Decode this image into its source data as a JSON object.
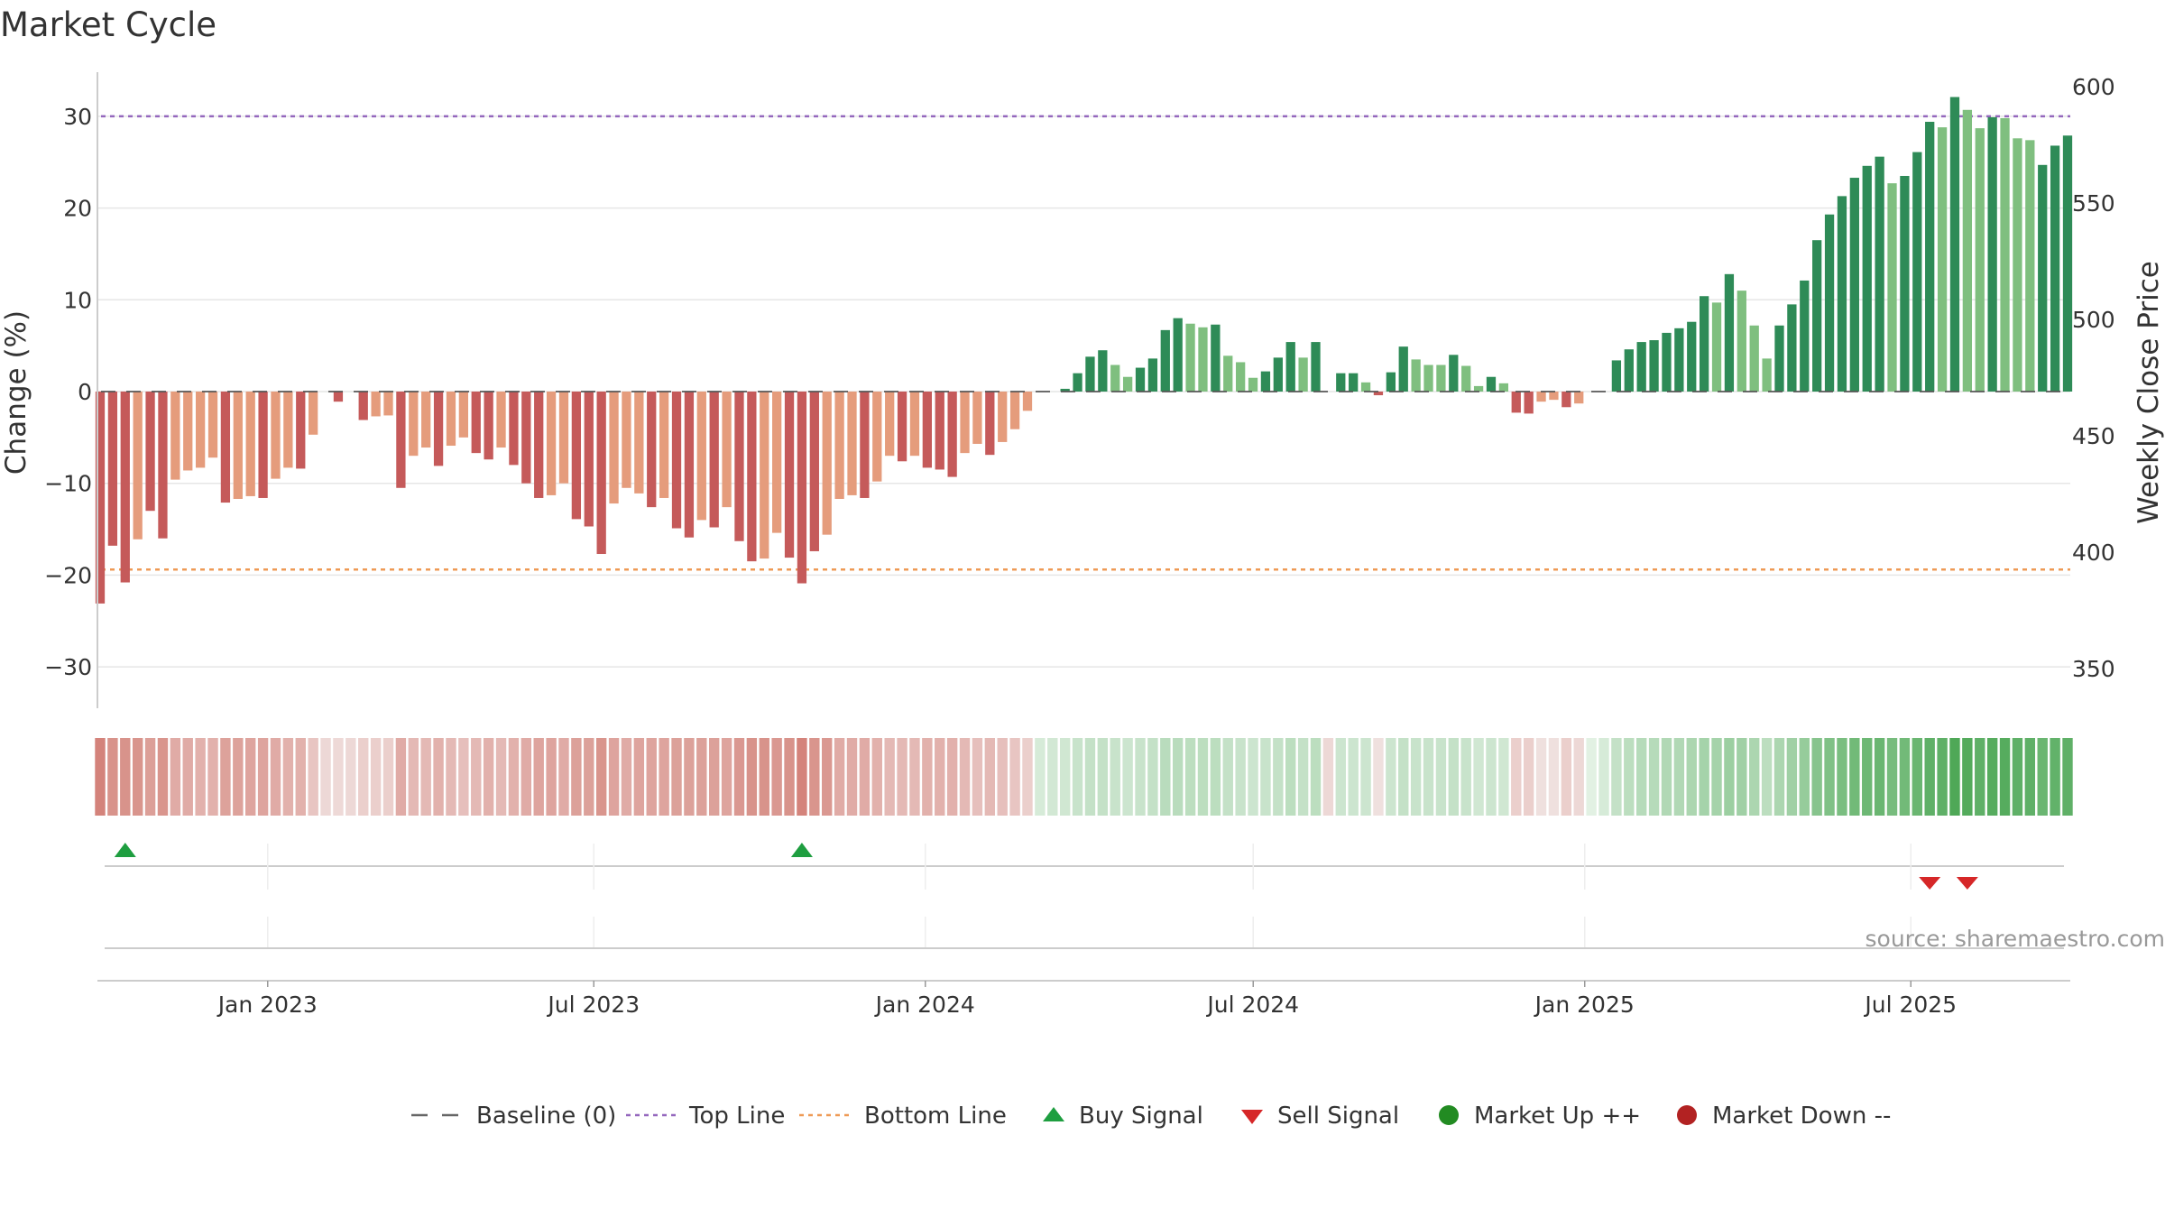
{
  "chart_data": {
    "type": "bar",
    "title": "Market Cycle",
    "ylabel": "Change (%)",
    "y2label": "Weekly Close Price",
    "ylim": [
      -35,
      35
    ],
    "y_ticks": [
      30,
      20,
      10,
      0,
      -10,
      -20,
      -30
    ],
    "y_tick_labels": [
      "30",
      "20",
      "10",
      "0",
      "−10",
      "−20",
      "−30"
    ],
    "y2lim": [
      335,
      605
    ],
    "y2_ticks": [
      600,
      550,
      500,
      450,
      400,
      350
    ],
    "y2_tick_labels": [
      "600",
      "550",
      "500",
      "450",
      "400",
      "350"
    ],
    "x_start": "2022-09-30",
    "x_end": "2025-09-26",
    "x_ticks": [
      "2023-01-01",
      "2023-07-01",
      "2024-01-01",
      "2024-07-01",
      "2025-01-01",
      "2025-07-01"
    ],
    "x_tick_labels": [
      "Jan 2023",
      "Jul 2023",
      "Jan 2024",
      "Jul 2024",
      "Jan 2025",
      "Jul 2025"
    ],
    "top_line": 30,
    "bottom_line": -19.4,
    "baseline": 0,
    "grid": true,
    "legend_position": "bottom",
    "values": [
      -23.1,
      -16.8,
      -20.8,
      -16.1,
      -13.0,
      -16.0,
      -9.6,
      -8.6,
      -8.3,
      -7.2,
      -12.1,
      -11.7,
      -11.4,
      -11.6,
      -9.5,
      -8.3,
      -8.4,
      -4.7,
      0,
      -1.1,
      0,
      -3.1,
      -2.7,
      -2.6,
      -10.5,
      -7.0,
      -6.1,
      -8.1,
      -5.9,
      -5.0,
      -6.7,
      -7.4,
      -6.1,
      -8.0,
      -10.0,
      -11.6,
      -11.3,
      -10.0,
      -13.9,
      -14.7,
      -17.7,
      -12.2,
      -10.5,
      -11.1,
      -12.6,
      -11.6,
      -14.9,
      -15.9,
      -14.0,
      -14.8,
      -12.6,
      -16.3,
      -18.5,
      -18.2,
      -15.4,
      -18.1,
      -20.9,
      -17.4,
      -15.6,
      -11.7,
      -11.3,
      -11.6,
      -9.8,
      -7.0,
      -7.6,
      -7.0,
      -8.3,
      -8.5,
      -9.3,
      -6.7,
      -5.7,
      -6.9,
      -5.5,
      -4.1,
      -2.1,
      0,
      0,
      0.3,
      2.0,
      3.8,
      4.5,
      2.9,
      1.6,
      2.6,
      3.6,
      6.7,
      8.0,
      7.4,
      7.0,
      7.3,
      3.9,
      3.2,
      1.5,
      2.2,
      3.7,
      5.4,
      3.7,
      5.4,
      0,
      2.0,
      2.0,
      1.0,
      -0.4,
      2.1,
      4.9,
      3.5,
      2.9,
      2.9,
      4.0,
      2.8,
      0.6,
      1.6,
      0.9,
      -2.3,
      -2.4,
      -1.1,
      -0.9,
      -1.7,
      -1.3,
      0,
      0,
      3.4,
      4.6,
      5.4,
      5.6,
      6.4,
      6.9,
      7.6,
      10.4,
      9.7,
      12.8,
      11.0,
      7.2,
      3.6,
      7.2,
      9.5,
      12.1,
      16.5,
      19.3,
      21.3,
      23.3,
      24.6,
      25.6,
      22.7,
      23.5,
      26.1,
      29.4,
      28.8,
      32.1,
      30.7,
      28.7,
      29.9,
      29.8,
      27.6,
      27.4,
      24.7,
      26.8,
      27.9
    ],
    "light_flags": [
      0,
      0,
      0,
      1,
      0,
      0,
      1,
      1,
      1,
      1,
      0,
      1,
      1,
      0,
      1,
      1,
      0,
      1,
      0,
      0,
      0,
      0,
      1,
      1,
      0,
      1,
      1,
      0,
      1,
      1,
      0,
      0,
      1,
      0,
      0,
      0,
      1,
      1,
      0,
      0,
      0,
      1,
      1,
      1,
      0,
      1,
      0,
      0,
      1,
      0,
      1,
      0,
      0,
      1,
      1,
      0,
      0,
      0,
      1,
      1,
      1,
      0,
      1,
      1,
      0,
      1,
      0,
      0,
      0,
      1,
      1,
      0,
      1,
      1,
      1,
      0,
      0,
      0,
      0,
      0,
      0,
      1,
      1,
      0,
      0,
      0,
      0,
      1,
      1,
      0,
      1,
      1,
      1,
      0,
      0,
      0,
      1,
      0,
      0,
      0,
      0,
      1,
      0,
      0,
      0,
      1,
      1,
      1,
      0,
      1,
      1,
      0,
      1,
      0,
      0,
      1,
      1,
      0,
      1,
      0,
      0,
      0,
      0,
      0,
      0,
      0,
      0,
      0,
      0,
      1,
      0,
      1,
      1,
      1,
      0,
      0,
      0,
      0,
      0,
      0,
      0,
      0,
      0,
      1,
      0,
      0,
      0,
      1,
      0,
      1,
      1,
      0,
      1,
      1,
      1,
      0,
      0
    ],
    "buy_signals": [
      2,
      56
    ],
    "sell_signals": [
      146,
      149
    ]
  },
  "strip": {
    "colors": [
      "#d4837b",
      "#d8938b",
      "#d8938b",
      "#d9958d",
      "#dc9f98",
      "#d9958d",
      "#e0aba6",
      "#e0aba6",
      "#e2b1ac",
      "#e2b1ac",
      "#dda29b",
      "#dda29b",
      "#dea49e",
      "#dea49e",
      "#e0aba6",
      "#e2b1ac",
      "#e2b1ac",
      "#e8c5c2",
      "#edd8d6",
      "#eed9d7",
      "#edd8d6",
      "#ebcfcc",
      "#ebcfcc",
      "#ebcfcc",
      "#e0aba6",
      "#e4b9b5",
      "#e4b9b5",
      "#e2b1ac",
      "#e4b9b5",
      "#e6bfbc",
      "#e4b9b5",
      "#e2b1ac",
      "#e4b9b5",
      "#e2b1ac",
      "#e0aba6",
      "#dea49e",
      "#dea49e",
      "#e0aba6",
      "#dca19a",
      "#dca19a",
      "#d9958d",
      "#dea49e",
      "#e0aba6",
      "#dea49e",
      "#dea49e",
      "#dea49e",
      "#dca19a",
      "#dca19a",
      "#dca19a",
      "#dca19a",
      "#dea49e",
      "#da9891",
      "#d8938b",
      "#d8938b",
      "#da9891",
      "#d8938b",
      "#d4837b",
      "#d9958d",
      "#da9891",
      "#e0aba6",
      "#e0aba6",
      "#e0aba6",
      "#e2b1ac",
      "#e4b9b5",
      "#e4b9b5",
      "#e4b9b5",
      "#e2b1ac",
      "#e2b1ac",
      "#e2b1ac",
      "#e4b9b5",
      "#e6bfbc",
      "#e4b9b5",
      "#e6bfbc",
      "#e8c5c2",
      "#ebcfcc",
      "#d6ebd8",
      "#d2e8d4",
      "#d0e7d2",
      "#c8e3cb",
      "#c4e1c7",
      "#c4e1c7",
      "#c8e3cb",
      "#cce5cf",
      "#c8e3cb",
      "#c4e1c7",
      "#b9dcbd",
      "#b9dcbd",
      "#bcdebf",
      "#bcdebf",
      "#bcdebf",
      "#c4e1c7",
      "#c8e3cb",
      "#cce5cf",
      "#c8e3cb",
      "#c4e1c7",
      "#bcdebf",
      "#c4e1c7",
      "#bcdebf",
      "#edd8d6",
      "#cce5cf",
      "#cce5cf",
      "#cce5cf",
      "#efe0de",
      "#cce5cf",
      "#c4e1c7",
      "#c8e3cb",
      "#c8e3cb",
      "#c8e3cb",
      "#c4e1c7",
      "#c8e3cb",
      "#d0e7d2",
      "#cce5cf",
      "#d0e7d2",
      "#ebcfcc",
      "#ebcfcc",
      "#efe0de",
      "#efe0de",
      "#ebcfcc",
      "#edd8d6",
      "#e2f1e3",
      "#d6ebd8",
      "#c4e1c7",
      "#bcdebf",
      "#b6dbba",
      "#b6dbba",
      "#b1d8b5",
      "#b1d8b5",
      "#acd6b0",
      "#a5d3aa",
      "#a5d3aa",
      "#9ccfa1",
      "#a0d0a5",
      "#acd6b0",
      "#bcdebf",
      "#acd6b0",
      "#a0d0a5",
      "#96cc9b",
      "#87c48d",
      "#80c186",
      "#7abe80",
      "#72ba78",
      "#6db874",
      "#6ab671",
      "#77bc7d",
      "#72ba78",
      "#6ab671",
      "#5fb067",
      "#5fb067",
      "#4fa857",
      "#54ab5c",
      "#5fb067",
      "#56ac5e",
      "#56ac5e",
      "#5fb067",
      "#5fb067",
      "#6ab671",
      "#62b26a",
      "#5fb067"
    ]
  },
  "legend": [
    {
      "label": "Baseline (0)",
      "marker": "dash",
      "color": "#666666"
    },
    {
      "label": "Top Line",
      "marker": "dotted",
      "color": "#9467bd"
    },
    {
      "label": "Bottom Line",
      "marker": "dotted",
      "color": "#ee9a55"
    },
    {
      "label": "Buy Signal",
      "marker": "triangle-up",
      "color": "#1e9e40"
    },
    {
      "label": "Sell Signal",
      "marker": "triangle-down",
      "color": "#d62728"
    },
    {
      "label": "Market Up ++",
      "marker": "circle",
      "color": "#228b22"
    },
    {
      "label": "Market Down --",
      "marker": "circle",
      "color": "#b22222"
    }
  ],
  "source": "source: sharemaestro.com",
  "colors": {
    "neg_dark": "#c55a5a",
    "neg_light": "#e59c7c",
    "pos_dark": "#2e8b57",
    "pos_light": "#7fbf7f",
    "top_line": "#9467bd",
    "bottom_line": "#ee9a55",
    "buy": "#1e9e40",
    "sell": "#d62728",
    "grid": "#e6e6e6"
  }
}
